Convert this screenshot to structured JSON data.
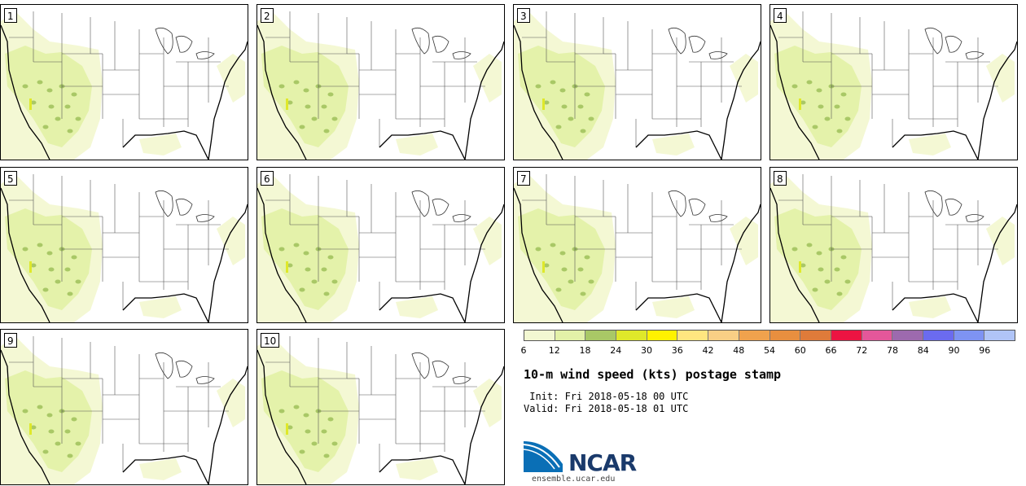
{
  "panels": [
    {
      "label": "1"
    },
    {
      "label": "2"
    },
    {
      "label": "3"
    },
    {
      "label": "4"
    },
    {
      "label": "5"
    },
    {
      "label": "6"
    },
    {
      "label": "7"
    },
    {
      "label": "8"
    },
    {
      "label": "9"
    },
    {
      "label": "10"
    }
  ],
  "colorbar": {
    "colors": [
      "#f3f8d2",
      "#e3f1a8",
      "#a9c866",
      "#dfe82a",
      "#fff200",
      "#ffe680",
      "#f9cf85",
      "#f0a24d",
      "#e88f3f",
      "#df7b3a",
      "#ec1442",
      "#e4579a",
      "#9d6aae",
      "#6b6bef",
      "#7e93f3",
      "#b0c4f7"
    ],
    "ticks": [
      "6",
      "12",
      "18",
      "24",
      "30",
      "36",
      "42",
      "48",
      "54",
      "60",
      "66",
      "72",
      "78",
      "84",
      "90",
      "96"
    ]
  },
  "title": "10-m wind speed (kts) postage stamp",
  "init": " Init: Fri 2018-05-18 00 UTC",
  "valid": "Valid: Fri 2018-05-18 01 UTC",
  "logo": {
    "text": "NCAR",
    "site": "ensemble.ucar.edu"
  }
}
